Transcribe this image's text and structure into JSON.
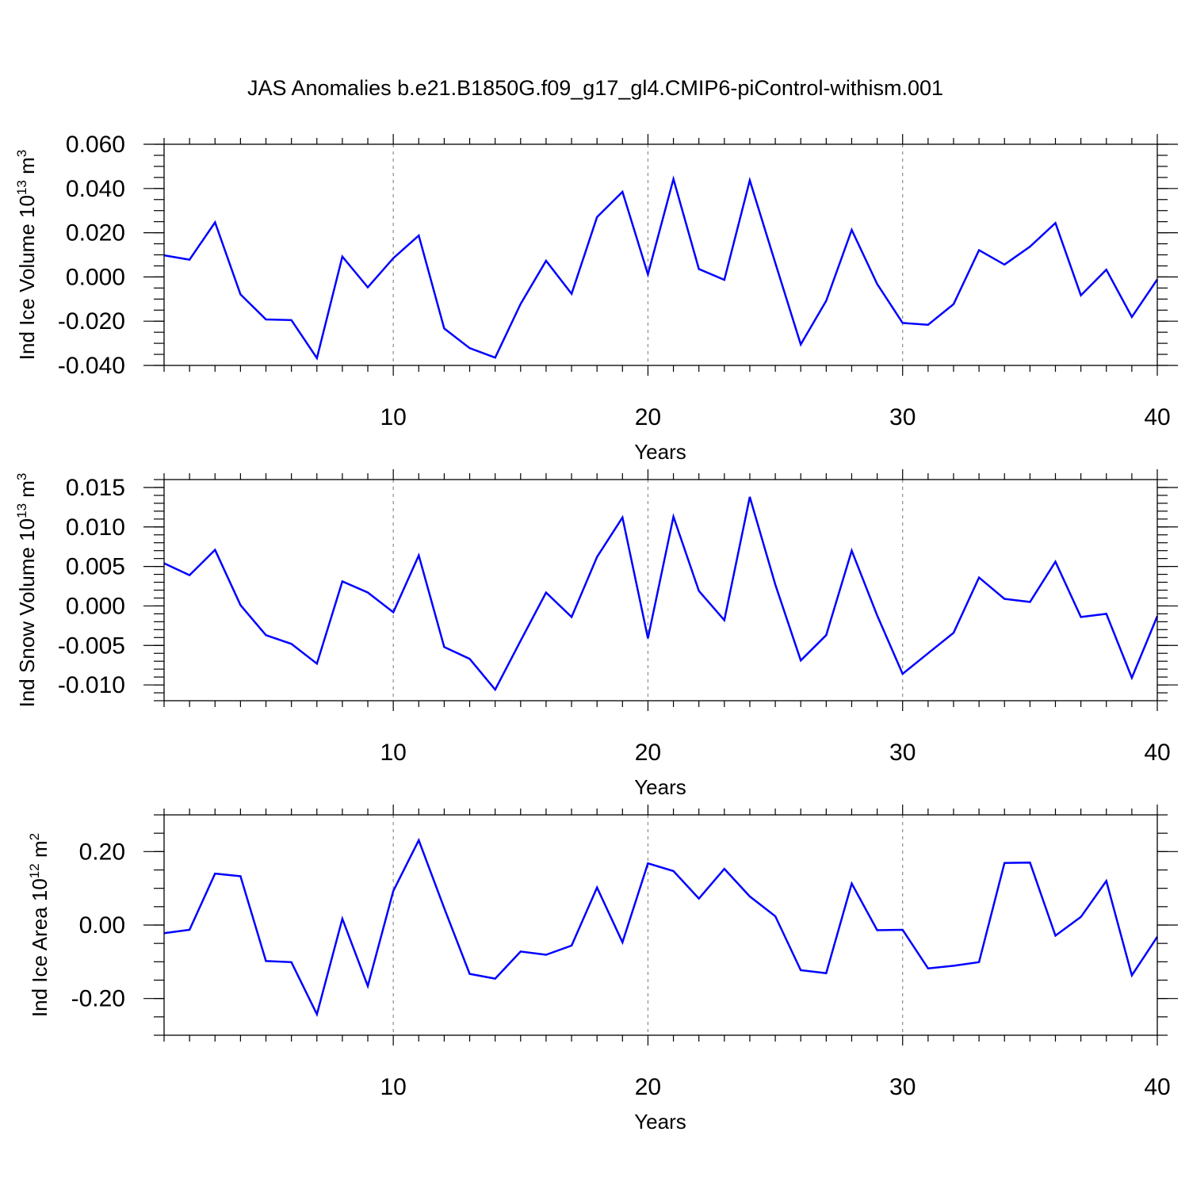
{
  "title": "JAS Anomalies b.e21.B1850G.f09_g17_gl4.CMIP6-piControl-withism.001",
  "line_color": "#0000ff",
  "chart_data": [
    {
      "type": "line",
      "title": "JAS Anomalies b.e21.B1850G.f09_g17_gl4.CMIP6-piControl-withism.001",
      "xlabel": "Years",
      "ylabel": {
        "prefix": "Ind Ice Volume 10",
        "exponent": "13",
        "unit": " m",
        "unit_exponent": "3"
      },
      "xlim": [
        1,
        40
      ],
      "ylim": [
        -0.04,
        0.06
      ],
      "x_major_ticks": [
        10,
        20,
        30,
        40
      ],
      "x_tick_labels": [
        "10",
        "20",
        "30",
        "40"
      ],
      "y_major_ticks": [
        -0.04,
        -0.02,
        0.0,
        0.02,
        0.04,
        0.06
      ],
      "y_tick_labels": [
        "-0.040",
        "-0.020",
        "0.000",
        "0.020",
        "0.040",
        "0.060"
      ],
      "y_minor_step": 0.005,
      "grid": "vertical dashed at major x ticks",
      "series": [
        {
          "name": "Ind Ice Volume",
          "x": [
            1,
            2,
            3,
            4,
            5,
            6,
            7,
            8,
            9,
            10,
            11,
            12,
            13,
            14,
            15,
            16,
            17,
            18,
            19,
            20,
            21,
            22,
            23,
            24,
            25,
            26,
            27,
            28,
            29,
            30,
            31,
            32,
            33,
            34,
            35,
            36,
            37,
            38,
            39,
            40
          ],
          "values": [
            0.0098,
            0.0078,
            0.0247,
            -0.0079,
            -0.0192,
            -0.0195,
            -0.0367,
            0.0092,
            -0.0047,
            0.0085,
            0.0187,
            -0.0233,
            -0.0322,
            -0.0365,
            -0.0122,
            0.0073,
            -0.0076,
            0.0271,
            0.0385,
            0.0012,
            0.0443,
            0.0036,
            -0.0013,
            0.0437,
            0.0063,
            -0.0305,
            -0.0108,
            0.0213,
            -0.0032,
            -0.0208,
            -0.0216,
            -0.0123,
            0.0121,
            0.0056,
            0.0137,
            0.0244,
            -0.0083,
            0.0033,
            -0.0181,
            -0.0011
          ]
        }
      ]
    },
    {
      "type": "line",
      "xlabel": "Years",
      "ylabel": {
        "prefix": "Ind Snow Volume 10",
        "exponent": "13",
        "unit": " m",
        "unit_exponent": "3"
      },
      "xlim": [
        1,
        40
      ],
      "ylim": [
        -0.012,
        0.016
      ],
      "x_major_ticks": [
        10,
        20,
        30,
        40
      ],
      "x_tick_labels": [
        "10",
        "20",
        "30",
        "40"
      ],
      "y_major_ticks": [
        -0.01,
        -0.005,
        0.0,
        0.005,
        0.01,
        0.015
      ],
      "y_tick_labels": [
        "-0.010",
        "-0.005",
        "0.000",
        "0.005",
        "0.010",
        "0.015"
      ],
      "y_minor_step": 0.001,
      "grid": "vertical dashed at major x ticks",
      "series": [
        {
          "name": "Ind Snow Volume",
          "x": [
            1,
            2,
            3,
            4,
            5,
            6,
            7,
            8,
            9,
            10,
            11,
            12,
            13,
            14,
            15,
            16,
            17,
            18,
            19,
            20,
            21,
            22,
            23,
            24,
            25,
            26,
            27,
            28,
            29,
            30,
            31,
            32,
            33,
            34,
            35,
            36,
            37,
            38,
            39,
            40
          ],
          "values": [
            0.0054,
            0.0039,
            0.0071,
            0.0001,
            -0.0037,
            -0.0048,
            -0.0073,
            0.0031,
            0.0017,
            -0.0008,
            0.0064,
            -0.0052,
            -0.0067,
            -0.0106,
            -0.0044,
            0.0017,
            -0.0014,
            0.0062,
            0.0112,
            -0.0041,
            0.0113,
            0.0019,
            -0.0018,
            0.0138,
            0.0027,
            -0.0069,
            -0.0037,
            0.007,
            -0.0012,
            -0.0086,
            -0.006,
            -0.0034,
            0.0036,
            0.0009,
            0.0005,
            0.0056,
            -0.0014,
            -0.001,
            -0.0091,
            -0.0013
          ]
        }
      ]
    },
    {
      "type": "line",
      "xlabel": "Years",
      "ylabel": {
        "prefix": "Ind Ice Area 10",
        "exponent": "12",
        "unit": " m",
        "unit_exponent": "2"
      },
      "xlim": [
        1,
        40
      ],
      "ylim": [
        -0.3,
        0.3
      ],
      "x_major_ticks": [
        10,
        20,
        30,
        40
      ],
      "x_tick_labels": [
        "10",
        "20",
        "30",
        "40"
      ],
      "y_major_ticks": [
        -0.2,
        0.0,
        0.2
      ],
      "y_tick_labels": [
        "-0.20",
        "0.00",
        "0.20"
      ],
      "y_minor_step": 0.05,
      "grid": "vertical dashed at major x ticks",
      "series": [
        {
          "name": "Ind Ice Area",
          "x": [
            1,
            2,
            3,
            4,
            5,
            6,
            7,
            8,
            9,
            10,
            11,
            12,
            13,
            14,
            15,
            16,
            17,
            18,
            19,
            20,
            21,
            22,
            23,
            24,
            25,
            26,
            27,
            28,
            29,
            30,
            31,
            32,
            33,
            34,
            35,
            36,
            37,
            38,
            39,
            40
          ],
          "values": [
            -0.022,
            -0.013,
            0.14,
            0.133,
            -0.098,
            -0.101,
            -0.243,
            0.017,
            -0.166,
            0.093,
            0.231,
            0.046,
            -0.133,
            -0.146,
            -0.072,
            -0.081,
            -0.056,
            0.102,
            -0.047,
            0.168,
            0.147,
            0.072,
            0.153,
            0.078,
            0.024,
            -0.123,
            -0.131,
            0.113,
            -0.014,
            -0.013,
            -0.118,
            -0.111,
            -0.101,
            0.169,
            0.17,
            -0.029,
            0.022,
            0.12,
            -0.137,
            -0.032
          ]
        }
      ]
    }
  ]
}
